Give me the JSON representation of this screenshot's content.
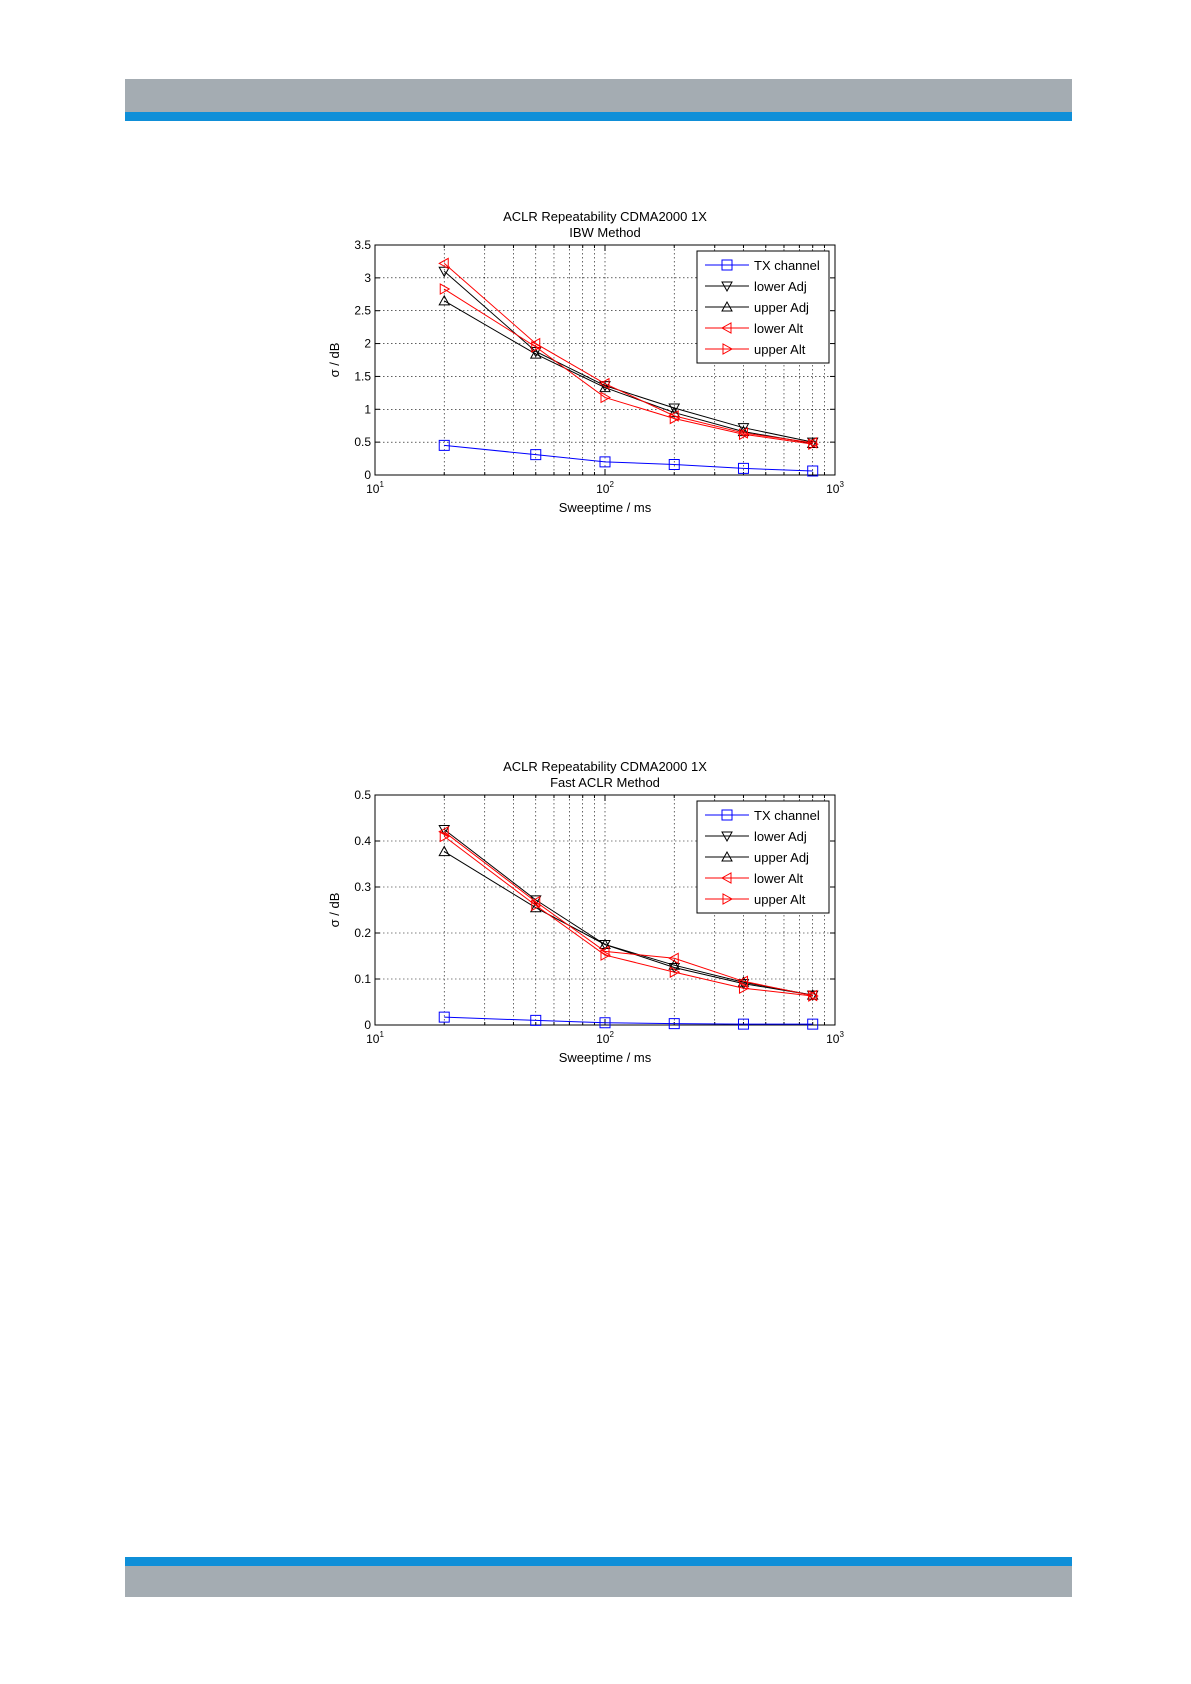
{
  "colors": {
    "header_gray": "#a4acb2",
    "header_blue": "#0f8fd8",
    "tx": "#0000ff",
    "adj": "#000000",
    "alt": "#ff0000"
  },
  "chart_data": [
    {
      "type": "line",
      "title": "ACLR Repeatability CDMA2000 1X",
      "subtitle": "IBW Method",
      "xlabel": "Sweeptime / ms",
      "ylabel": "σ / dB",
      "xscale": "log",
      "xlim": [
        10,
        1000
      ],
      "ylim": [
        0,
        3.5
      ],
      "yticks": [
        "0",
        "0.5",
        "1",
        "1.5",
        "2",
        "2.5",
        "3",
        "3.5"
      ],
      "xticks": [
        {
          "base": "10",
          "exp": "1"
        },
        {
          "base": "10",
          "exp": "2"
        },
        {
          "base": "10",
          "exp": "3"
        }
      ],
      "grid": true,
      "legend": "top-right",
      "x": [
        20,
        50,
        100,
        200,
        400,
        800
      ],
      "series": [
        {
          "name": "TX channel",
          "marker": "square",
          "color": "#0000ff",
          "values": [
            0.45,
            0.31,
            0.2,
            0.16,
            0.1,
            0.06
          ]
        },
        {
          "name": "lower Adj",
          "marker": "tri-down",
          "color": "#000000",
          "values": [
            3.1,
            1.88,
            1.36,
            1.02,
            0.72,
            0.5
          ]
        },
        {
          "name": "upper Adj",
          "marker": "tri-up",
          "color": "#000000",
          "values": [
            2.65,
            1.84,
            1.33,
            0.95,
            0.66,
            0.48
          ]
        },
        {
          "name": "lower Alt",
          "marker": "tri-left",
          "color": "#ff0000",
          "values": [
            3.22,
            2.0,
            1.39,
            0.9,
            0.64,
            0.49
          ]
        },
        {
          "name": "upper Alt",
          "marker": "tri-right",
          "color": "#ff0000",
          "values": [
            2.83,
            1.95,
            1.18,
            0.86,
            0.62,
            0.47
          ]
        }
      ]
    },
    {
      "type": "line",
      "title": "ACLR Repeatability CDMA2000 1X",
      "subtitle": "Fast ACLR Method",
      "xlabel": "Sweeptime / ms",
      "ylabel": "σ / dB",
      "xscale": "log",
      "xlim": [
        10,
        1000
      ],
      "ylim": [
        0,
        0.5
      ],
      "yticks": [
        "0",
        "0.1",
        "0.2",
        "0.3",
        "0.4",
        "0.5"
      ],
      "xticks": [
        {
          "base": "10",
          "exp": "1"
        },
        {
          "base": "10",
          "exp": "2"
        },
        {
          "base": "10",
          "exp": "3"
        }
      ],
      "grid": true,
      "legend": "top-right",
      "x": [
        20,
        50,
        100,
        200,
        400,
        800
      ],
      "series": [
        {
          "name": "TX channel",
          "marker": "square",
          "color": "#0000ff",
          "values": [
            0.017,
            0.01,
            0.005,
            0.003,
            0.002,
            0.002
          ]
        },
        {
          "name": "lower Adj",
          "marker": "tri-down",
          "color": "#000000",
          "values": [
            0.425,
            0.272,
            0.175,
            0.125,
            0.09,
            0.065
          ]
        },
        {
          "name": "upper Adj",
          "marker": "tri-up",
          "color": "#000000",
          "values": [
            0.377,
            0.255,
            0.175,
            0.13,
            0.093,
            0.065
          ]
        },
        {
          "name": "lower Alt",
          "marker": "tri-left",
          "color": "#ff0000",
          "values": [
            0.42,
            0.268,
            0.16,
            0.145,
            0.095,
            0.064
          ]
        },
        {
          "name": "upper Alt",
          "marker": "tri-right",
          "color": "#ff0000",
          "values": [
            0.41,
            0.26,
            0.152,
            0.115,
            0.08,
            0.063
          ]
        }
      ]
    }
  ]
}
